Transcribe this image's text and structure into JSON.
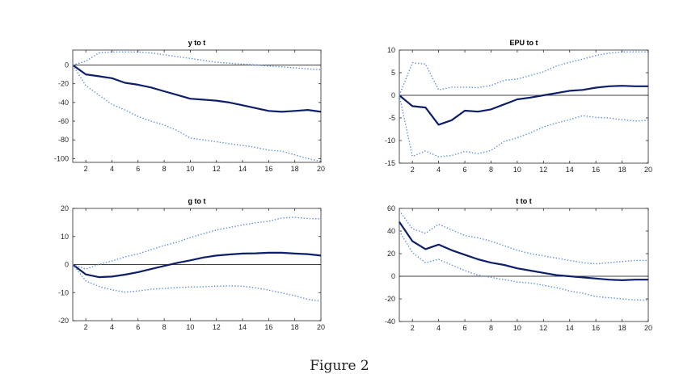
{
  "caption": "Figure 2",
  "chart_data": [
    {
      "type": "line",
      "title": "y to t",
      "x": [
        1,
        2,
        3,
        4,
        5,
        6,
        7,
        8,
        9,
        10,
        11,
        12,
        13,
        14,
        15,
        16,
        17,
        18,
        19,
        20
      ],
      "xlim": [
        1,
        20
      ],
      "xticks": [
        2,
        4,
        6,
        8,
        10,
        12,
        14,
        16,
        18,
        20
      ],
      "ylim": [
        -104,
        16
      ],
      "yticks": [
        0,
        -20,
        -40,
        -60,
        -80,
        -100
      ],
      "zero_line": true,
      "series": [
        {
          "role": "median",
          "values": [
            0,
            -10,
            -12,
            -14,
            -19,
            -21,
            -24,
            -28,
            -32,
            -36,
            -37,
            -38,
            -40,
            -43,
            -46,
            -49,
            -50,
            -49,
            -48,
            -50
          ]
        },
        {
          "role": "upper",
          "values": [
            0,
            4,
            13,
            14,
            14,
            14,
            13,
            11,
            9,
            7,
            5,
            3,
            2,
            1,
            0,
            -1,
            -2,
            -3,
            -4,
            -5
          ]
        },
        {
          "role": "lower",
          "values": [
            0,
            -22,
            -32,
            -42,
            -48,
            -55,
            -60,
            -64,
            -70,
            -78,
            -80,
            -82,
            -84,
            -86,
            -88,
            -91,
            -92,
            -96,
            -100,
            -103
          ]
        }
      ]
    },
    {
      "type": "line",
      "title": "EPU to t",
      "x": [
        1,
        2,
        3,
        4,
        5,
        6,
        7,
        8,
        9,
        10,
        11,
        12,
        13,
        14,
        15,
        16,
        17,
        18,
        19,
        20
      ],
      "xlim": [
        1,
        20
      ],
      "xticks": [
        2,
        4,
        6,
        8,
        10,
        12,
        14,
        16,
        18,
        20
      ],
      "ylim": [
        -15,
        10
      ],
      "yticks": [
        10,
        5,
        0,
        -5,
        -10,
        -15
      ],
      "zero_line": true,
      "series": [
        {
          "role": "median",
          "values": [
            0,
            -2.4,
            -2.7,
            -6.5,
            -5.5,
            -3.4,
            -3.6,
            -3.1,
            -2.0,
            -0.9,
            -0.5,
            0,
            0.5,
            1.0,
            1.2,
            1.7,
            2.0,
            2.1,
            2.0,
            2.0
          ]
        },
        {
          "role": "upper",
          "values": [
            0,
            7.2,
            6.9,
            1.2,
            1.8,
            1.8,
            1.7,
            2.2,
            3.3,
            3.6,
            4.4,
            5.2,
            6.5,
            7.3,
            8.0,
            8.8,
            9.3,
            9.6,
            9.6,
            9.6
          ]
        },
        {
          "role": "lower",
          "values": [
            0,
            -13.5,
            -12.3,
            -13.6,
            -13.3,
            -12.4,
            -12.9,
            -12.2,
            -10.2,
            -9.4,
            -8.3,
            -7.0,
            -6.1,
            -5.4,
            -4.5,
            -4.9,
            -5.0,
            -5.4,
            -5.7,
            -5.5
          ]
        }
      ]
    },
    {
      "type": "line",
      "title": "g to t",
      "x": [
        1,
        2,
        3,
        4,
        5,
        6,
        7,
        8,
        9,
        10,
        11,
        12,
        13,
        14,
        15,
        16,
        17,
        18,
        19,
        20
      ],
      "xlim": [
        1,
        20
      ],
      "xticks": [
        2,
        4,
        6,
        8,
        10,
        12,
        14,
        16,
        18,
        20
      ],
      "ylim": [
        -20,
        20
      ],
      "yticks": [
        20,
        10,
        0,
        -10,
        -20
      ],
      "zero_line": true,
      "series": [
        {
          "role": "median",
          "values": [
            0,
            -3.5,
            -4.5,
            -4.3,
            -3.6,
            -2.7,
            -1.6,
            -0.5,
            0.6,
            1.5,
            2.5,
            3.2,
            3.6,
            3.9,
            4.0,
            4.2,
            4.2,
            3.9,
            3.7,
            3.2
          ]
        },
        {
          "role": "upper",
          "values": [
            0,
            -1.6,
            0,
            1.3,
            2.7,
            3.8,
            5.3,
            6.8,
            8.0,
            9.6,
            11.0,
            12.3,
            13.2,
            14.1,
            14.9,
            15.4,
            16.6,
            16.8,
            16.4,
            16.3
          ]
        },
        {
          "role": "lower",
          "values": [
            0,
            -5.8,
            -7.8,
            -9.0,
            -9.8,
            -9.4,
            -8.8,
            -8.5,
            -8.2,
            -8.0,
            -7.9,
            -7.7,
            -7.6,
            -7.7,
            -8.3,
            -9.1,
            -10.1,
            -11.1,
            -12.4,
            -13.0
          ]
        }
      ]
    },
    {
      "type": "line",
      "title": "t to t",
      "x": [
        1,
        2,
        3,
        4,
        5,
        6,
        7,
        8,
        9,
        10,
        11,
        12,
        13,
        14,
        15,
        16,
        17,
        18,
        19,
        20
      ],
      "xlim": [
        1,
        20
      ],
      "xticks": [
        2,
        4,
        6,
        8,
        10,
        12,
        14,
        16,
        18,
        20
      ],
      "ylim": [
        -40,
        60
      ],
      "yticks": [
        60,
        40,
        20,
        0,
        -20,
        -40
      ],
      "zero_line": true,
      "series": [
        {
          "role": "median",
          "values": [
            48,
            31,
            24,
            28,
            23,
            19,
            15,
            12,
            10,
            7,
            5,
            3,
            1,
            0,
            -1,
            -2,
            -3,
            -3.5,
            -3,
            -3
          ]
        },
        {
          "role": "upper",
          "values": [
            58,
            42,
            38,
            46,
            41,
            36,
            34,
            31,
            27,
            23,
            20,
            18,
            16,
            14,
            12,
            11,
            12,
            13,
            14,
            14
          ]
        },
        {
          "role": "lower",
          "values": [
            40,
            21,
            12,
            15,
            10,
            5,
            1,
            -1,
            -3,
            -5,
            -6,
            -8,
            -10,
            -13,
            -15,
            -18,
            -19,
            -20,
            -21,
            -21
          ]
        }
      ]
    }
  ],
  "colors": {
    "median": "#0d1f6b",
    "band": "#5b8fd9",
    "axis": "#262626",
    "zero_line": "#000000"
  }
}
